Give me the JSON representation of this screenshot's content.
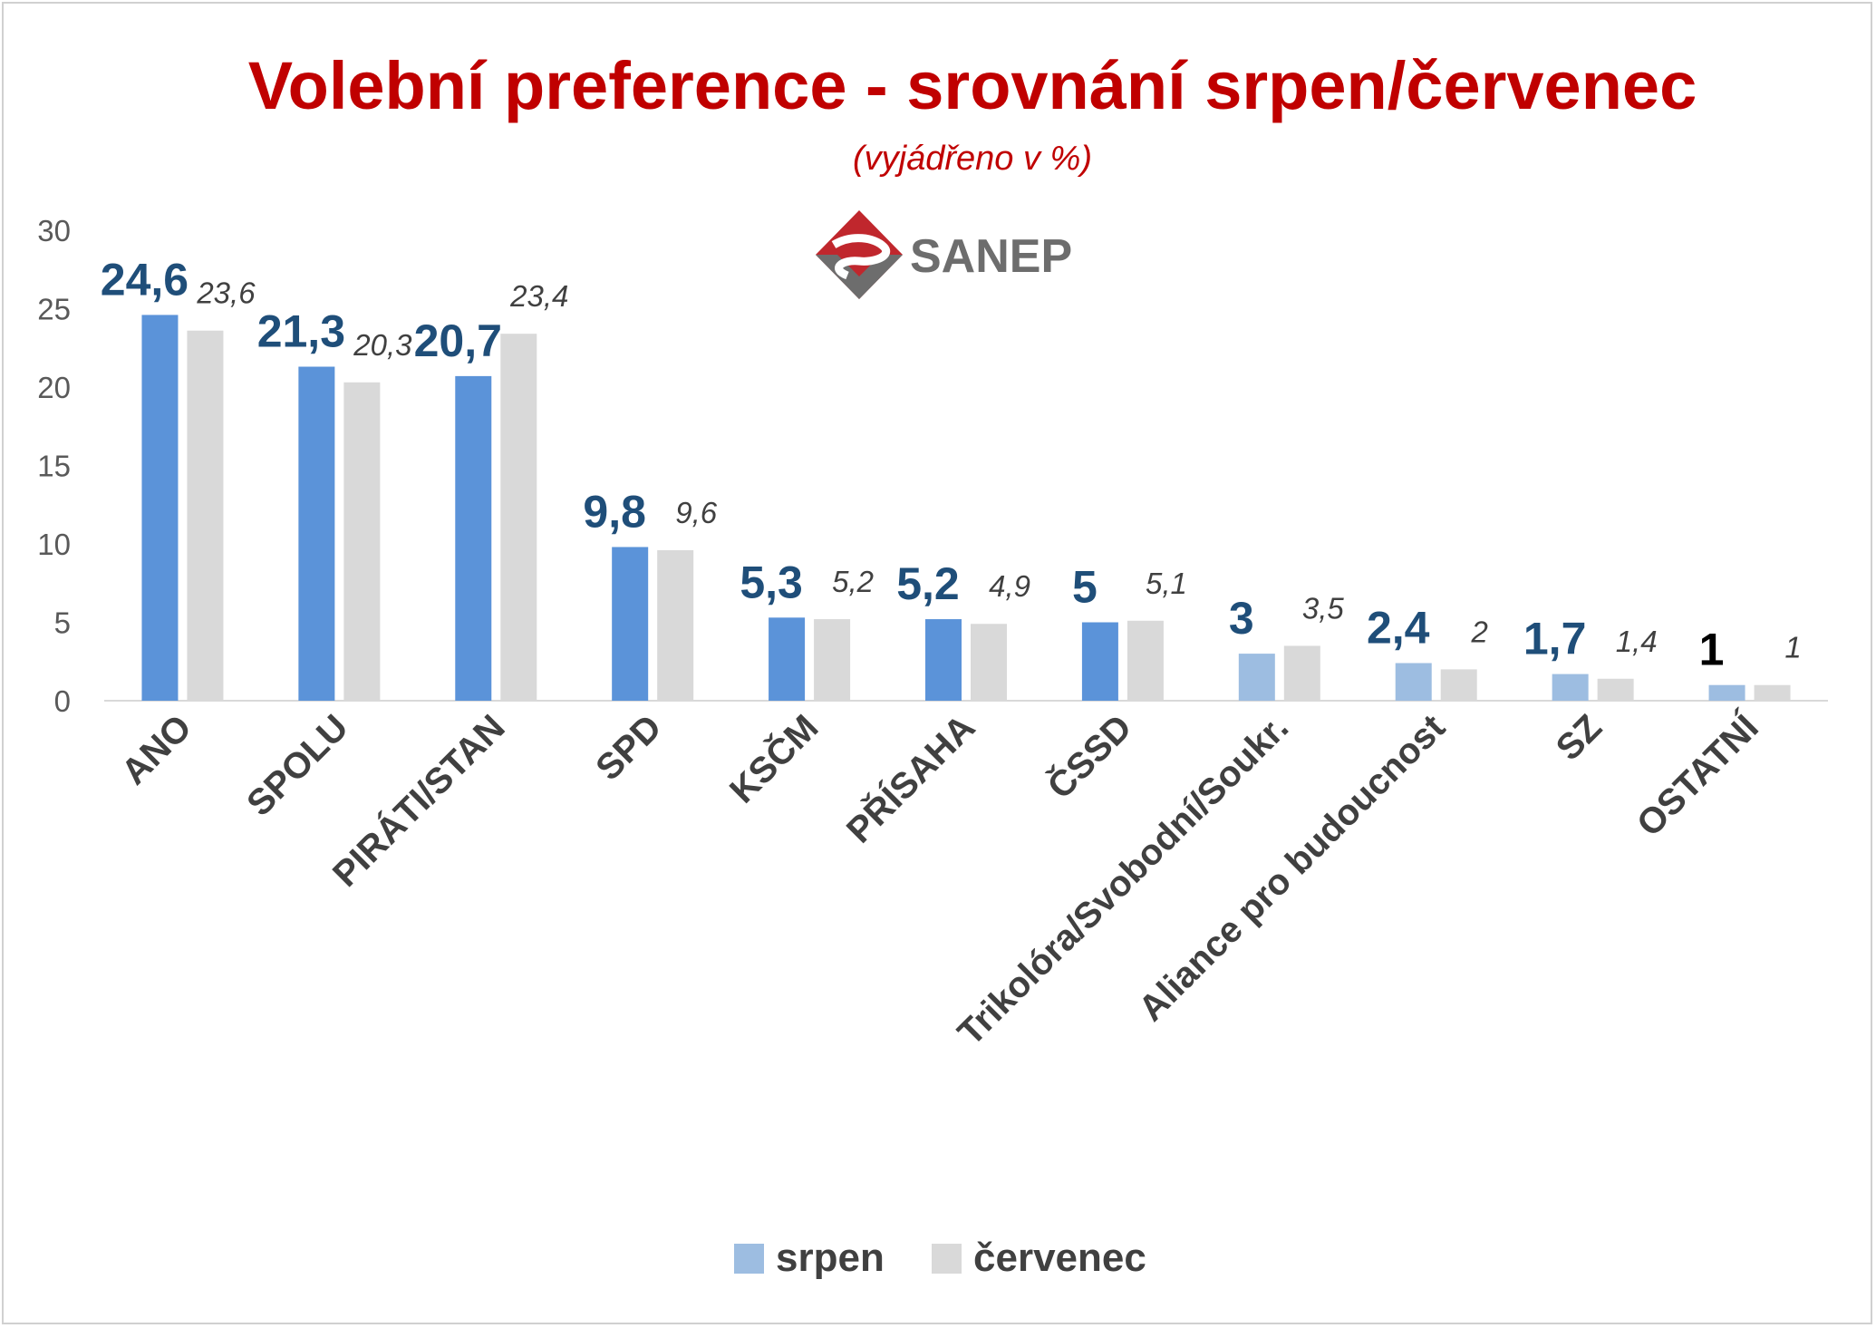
{
  "chart_data": {
    "type": "bar",
    "title": "Volební preference - srovnání srpen/červenec",
    "subtitle": "(vyjádřeno v %)",
    "logo_text": "SANEP",
    "categories": [
      "ANO",
      "SPOLU",
      "PIRÁTI/STAN",
      "SPD",
      "KSČM",
      "PŘÍSAHA",
      "ČSSD",
      "Trikolóra/Svobodní/Soukr.",
      "Aliance pro budoucnost",
      "SZ",
      "OSTATNÍ"
    ],
    "series": [
      {
        "name": "srpen",
        "values": [
          24.6,
          21.3,
          20.7,
          9.8,
          5.3,
          5.2,
          5,
          3,
          2.4,
          1.7,
          1
        ],
        "labels": [
          "24,6",
          "21,3",
          "20,7",
          "9,8",
          "5,3",
          "5,2",
          "5",
          "3",
          "2,4",
          "1,7",
          "1"
        ]
      },
      {
        "name": "červenec",
        "values": [
          23.6,
          20.3,
          23.4,
          9.6,
          5.2,
          4.9,
          5.1,
          3.5,
          2,
          1.4,
          1
        ],
        "labels": [
          "23,6",
          "20,3",
          "23,4",
          "9,6",
          "5,2",
          "4,9",
          "5,1",
          "3,5",
          "2",
          "1,4",
          "1"
        ]
      }
    ],
    "ylim": [
      0,
      30
    ],
    "yticks": [
      "0",
      "5",
      "10",
      "15",
      "20",
      "25",
      "30"
    ],
    "grid": false,
    "legend": "bottom",
    "colors": {
      "srpen_main": "#5b93d9",
      "srpen_light": "#9dbde1",
      "cervenec": "#d9d9d9",
      "title": "#c00000",
      "label_srpen": "#1f4e79",
      "label_srpen_last": "#000000",
      "logo_red": "#c0272d",
      "logo_gray": "#6d6d6d"
    }
  }
}
